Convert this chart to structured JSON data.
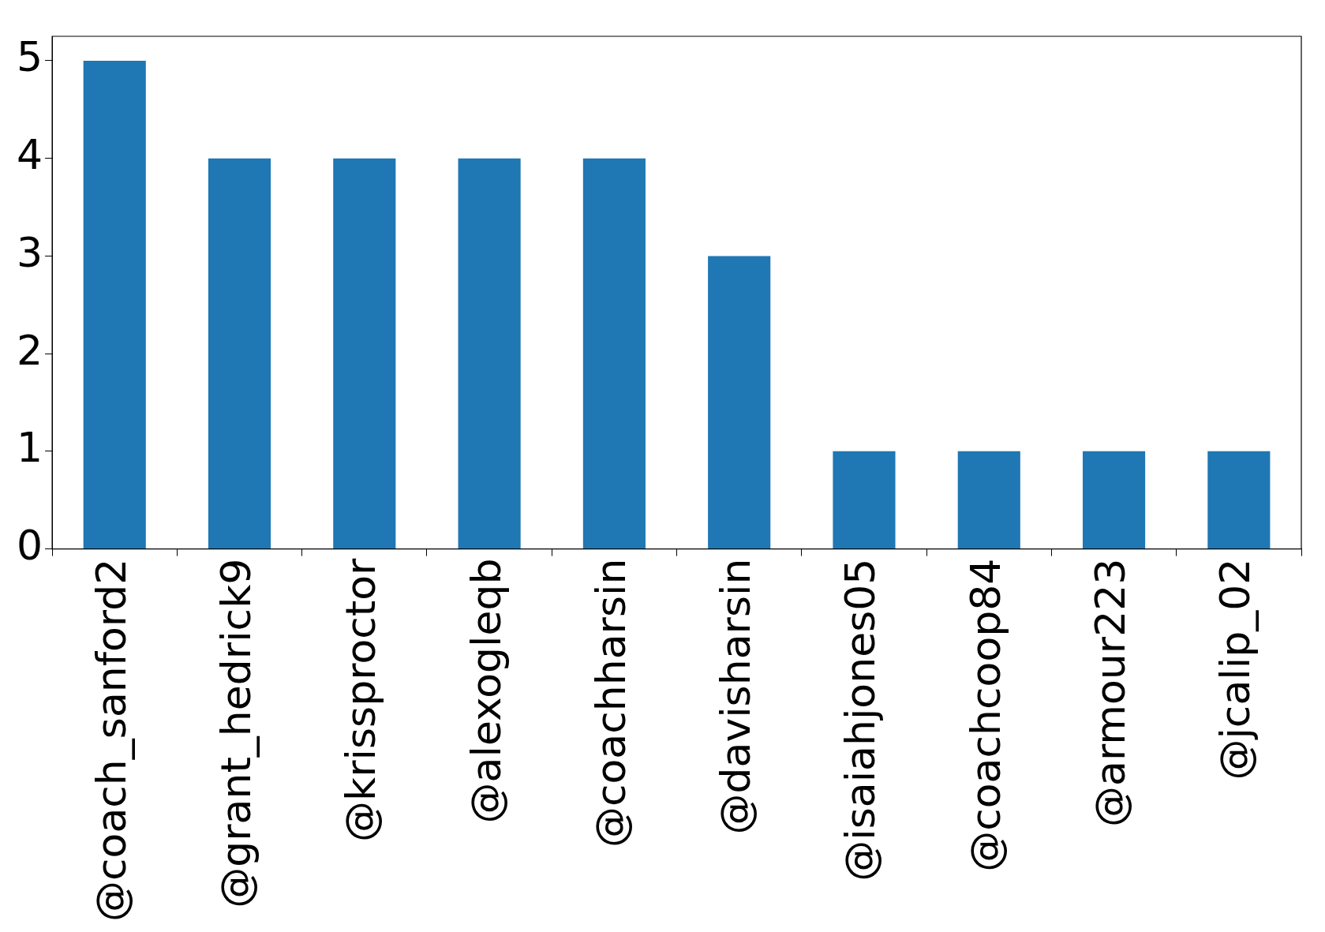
{
  "chart_data": {
    "type": "bar",
    "categories": [
      "@coach_sanford2",
      "@grant_hedrick9",
      "@krissproctor",
      "@alexogleqb",
      "@coachharsin",
      "@davisharsin",
      "@isaiahjones05",
      "@coachcoop84",
      "@armour223",
      "@jcalip_02"
    ],
    "values": [
      5,
      4,
      4,
      4,
      4,
      3,
      1,
      1,
      1,
      1
    ],
    "color": "#1f77b4",
    "ylim": [
      0,
      5.25
    ],
    "yticks": [
      0,
      1,
      2,
      3,
      4,
      5
    ],
    "grid": false,
    "legend": false
  }
}
